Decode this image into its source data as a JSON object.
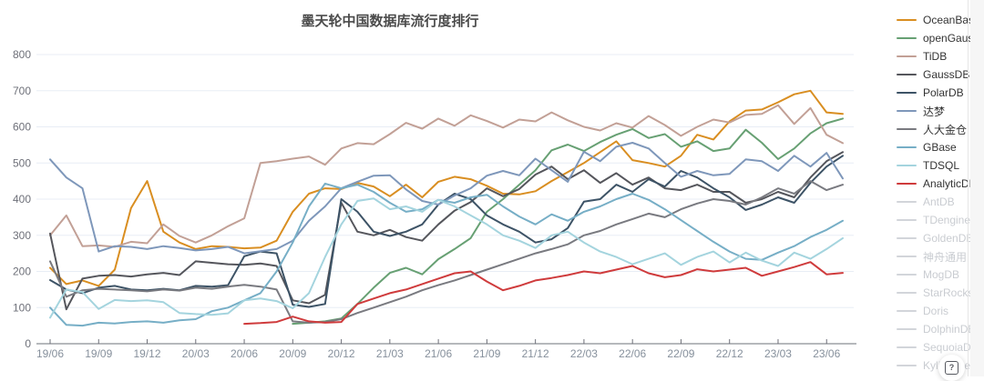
{
  "title": "墨天轮中国数据库流行度排行",
  "help_button": {
    "icon": "question-mark-box"
  },
  "legend": {
    "items": [
      {
        "label": "OceanBase",
        "color": "#d98e21",
        "active": true
      },
      {
        "label": "openGauss",
        "color": "#67a073",
        "active": true
      },
      {
        "label": "TiDB",
        "color": "#c2a096",
        "active": true
      },
      {
        "label": "GaussDB",
        "color": "#55565c",
        "active": true
      },
      {
        "label": "PolarDB",
        "color": "#3d5366",
        "active": true
      },
      {
        "label": "达梦",
        "color": "#7e97ba",
        "active": true
      },
      {
        "label": "人大金仓",
        "color": "#797a80",
        "active": true
      },
      {
        "label": "GBase",
        "color": "#76aec6",
        "active": true
      },
      {
        "label": "TDSQL",
        "color": "#a4d4de",
        "active": true
      },
      {
        "label": "AnalyticDB",
        "color": "#cf3b3c",
        "active": true
      },
      {
        "label": "AntDB",
        "color": "#d2d5da",
        "active": false
      },
      {
        "label": "TDengine",
        "color": "#d2d5da",
        "active": false
      },
      {
        "label": "GoldenDB",
        "color": "#d2d5da",
        "active": false
      },
      {
        "label": "神舟通用",
        "color": "#d2d5da",
        "active": false
      },
      {
        "label": "MogDB",
        "color": "#d2d5da",
        "active": false
      },
      {
        "label": "StarRocks",
        "color": "#d2d5da",
        "active": false
      },
      {
        "label": "Doris",
        "color": "#d2d5da",
        "active": false
      },
      {
        "label": "DolphinDB",
        "color": "#d2d5da",
        "active": false
      },
      {
        "label": "SequoiaDB",
        "color": "#d2d5da",
        "active": false
      },
      {
        "label": "Kyligence",
        "color": "#d2d5da",
        "active": false
      }
    ]
  },
  "chart_data": {
    "type": "line",
    "title": "墨天轮中国数据库流行度排行",
    "xlabel": "",
    "ylabel": "",
    "ylim": [
      0,
      800
    ],
    "y_ticks": [
      0,
      100,
      200,
      300,
      400,
      500,
      600,
      700,
      800
    ],
    "grid": "horizontal",
    "legend_position": "right",
    "x_tick_every": 3,
    "x": [
      "19/06",
      "19/07",
      "19/08",
      "19/09",
      "19/10",
      "19/11",
      "19/12",
      "20/01",
      "20/02",
      "20/03",
      "20/04",
      "20/05",
      "20/06",
      "20/07",
      "20/08",
      "20/09",
      "20/10",
      "20/11",
      "20/12",
      "21/01",
      "21/02",
      "21/03",
      "21/04",
      "21/05",
      "21/06",
      "21/07",
      "21/08",
      "21/09",
      "21/10",
      "21/11",
      "21/12",
      "22/01",
      "22/02",
      "22/03",
      "22/04",
      "22/05",
      "22/06",
      "22/07",
      "22/08",
      "22/09",
      "22/10",
      "22/11",
      "22/12",
      "23/01",
      "23/02",
      "23/03",
      "23/04",
      "23/05",
      "23/06",
      "23/07"
    ],
    "series": [
      {
        "name": "OceanBase",
        "color": "#d98e21",
        "values": [
          210,
          165,
          175,
          160,
          205,
          375,
          450,
          310,
          280,
          262,
          270,
          268,
          264,
          266,
          285,
          365,
          415,
          430,
          428,
          445,
          435,
          408,
          440,
          405,
          448,
          462,
          455,
          437,
          415,
          413,
          422,
          450,
          475,
          500,
          530,
          560,
          508,
          500,
          490,
          520,
          578,
          565,
          615,
          645,
          648,
          668,
          690,
          700,
          640,
          636
        ]
      },
      {
        "name": "openGauss",
        "color": "#67a073",
        "values": [
          null,
          null,
          null,
          null,
          null,
          null,
          null,
          null,
          null,
          null,
          null,
          null,
          null,
          null,
          null,
          55,
          58,
          62,
          70,
          110,
          155,
          196,
          210,
          192,
          234,
          262,
          292,
          365,
          400,
          440,
          480,
          535,
          551,
          533,
          558,
          578,
          594,
          569,
          580,
          545,
          560,
          533,
          540,
          592,
          556,
          511,
          540,
          582,
          610,
          623
        ]
      },
      {
        "name": "TiDB",
        "color": "#c2a096",
        "values": [
          300,
          355,
          270,
          272,
          268,
          282,
          278,
          330,
          298,
          280,
          300,
          325,
          347,
          500,
          505,
          512,
          518,
          495,
          540,
          555,
          552,
          580,
          611,
          595,
          623,
          603,
          632,
          616,
          598,
          620,
          615,
          640,
          618,
          600,
          590,
          610,
          598,
          630,
          605,
          575,
          600,
          620,
          612,
          633,
          636,
          660,
          608,
          652,
          578,
          555
        ]
      },
      {
        "name": "GaussDB",
        "color": "#55565c",
        "values": [
          305,
          95,
          180,
          188,
          190,
          186,
          192,
          196,
          190,
          228,
          224,
          220,
          218,
          222,
          215,
          120,
          112,
          135,
          390,
          310,
          300,
          315,
          295,
          285,
          330,
          368,
          392,
          430,
          408,
          428,
          468,
          490,
          455,
          480,
          445,
          472,
          440,
          460,
          430,
          425,
          440,
          420,
          420,
          390,
          400,
          420,
          405,
          460,
          505,
          530
        ]
      },
      {
        "name": "PolarDB",
        "color": "#3d5366",
        "values": [
          176,
          150,
          140,
          155,
          160,
          150,
          148,
          152,
          148,
          160,
          158,
          162,
          242,
          255,
          250,
          108,
          102,
          110,
          400,
          365,
          310,
          298,
          310,
          330,
          385,
          415,
          400,
          355,
          330,
          310,
          280,
          289,
          320,
          393,
          400,
          440,
          420,
          455,
          435,
          478,
          460,
          430,
          405,
          370,
          385,
          405,
          390,
          445,
          490,
          520
        ]
      },
      {
        "name": "达梦",
        "color": "#7e97ba",
        "values": [
          510,
          460,
          430,
          255,
          270,
          268,
          262,
          270,
          265,
          258,
          262,
          268,
          250,
          256,
          262,
          285,
          340,
          380,
          430,
          448,
          465,
          466,
          427,
          395,
          385,
          410,
          430,
          465,
          478,
          466,
          512,
          480,
          448,
          531,
          505,
          545,
          556,
          540,
          500,
          462,
          478,
          466,
          470,
          510,
          505,
          478,
          520,
          490,
          528,
          457
        ]
      },
      {
        "name": "人大金仓",
        "color": "#797a80",
        "values": [
          228,
          130,
          148,
          152,
          150,
          148,
          145,
          150,
          147,
          155,
          152,
          158,
          163,
          158,
          150,
          62,
          58,
          60,
          68,
          85,
          100,
          115,
          130,
          148,
          162,
          175,
          190,
          205,
          220,
          235,
          250,
          262,
          275,
          300,
          312,
          330,
          345,
          360,
          350,
          372,
          388,
          400,
          395,
          385,
          405,
          430,
          415,
          450,
          425,
          440
        ]
      },
      {
        "name": "GBase",
        "color": "#76aec6",
        "values": [
          100,
          52,
          50,
          58,
          56,
          60,
          62,
          58,
          65,
          68,
          90,
          100,
          120,
          140,
          200,
          280,
          380,
          443,
          430,
          440,
          420,
          390,
          365,
          372,
          398,
          390,
          405,
          412,
          380,
          352,
          330,
          358,
          340,
          365,
          380,
          400,
          415,
          398,
          372,
          342,
          312,
          282,
          255,
          235,
          232,
          252,
          270,
          295,
          315,
          340
        ]
      },
      {
        "name": "TDSQL",
        "color": "#a4d4de",
        "values": [
          72,
          150,
          143,
          96,
          121,
          118,
          120,
          115,
          85,
          82,
          80,
          84,
          120,
          125,
          118,
          98,
          140,
          240,
          330,
          395,
          402,
          372,
          380,
          365,
          398,
          380,
          355,
          330,
          300,
          285,
          265,
          300,
          310,
          280,
          255,
          240,
          220,
          235,
          250,
          218,
          240,
          255,
          225,
          252,
          230,
          215,
          252,
          235,
          262,
          292
        ]
      },
      {
        "name": "AnalyticDB",
        "color": "#cf3b3c",
        "values": [
          null,
          null,
          null,
          null,
          null,
          null,
          null,
          null,
          null,
          null,
          null,
          null,
          55,
          57,
          60,
          75,
          62,
          58,
          60,
          110,
          125,
          140,
          150,
          165,
          180,
          195,
          200,
          172,
          148,
          160,
          175,
          182,
          190,
          200,
          195,
          205,
          215,
          195,
          184,
          190,
          206,
          200,
          205,
          210,
          188,
          200,
          212,
          226,
          192,
          196
        ]
      }
    ]
  }
}
